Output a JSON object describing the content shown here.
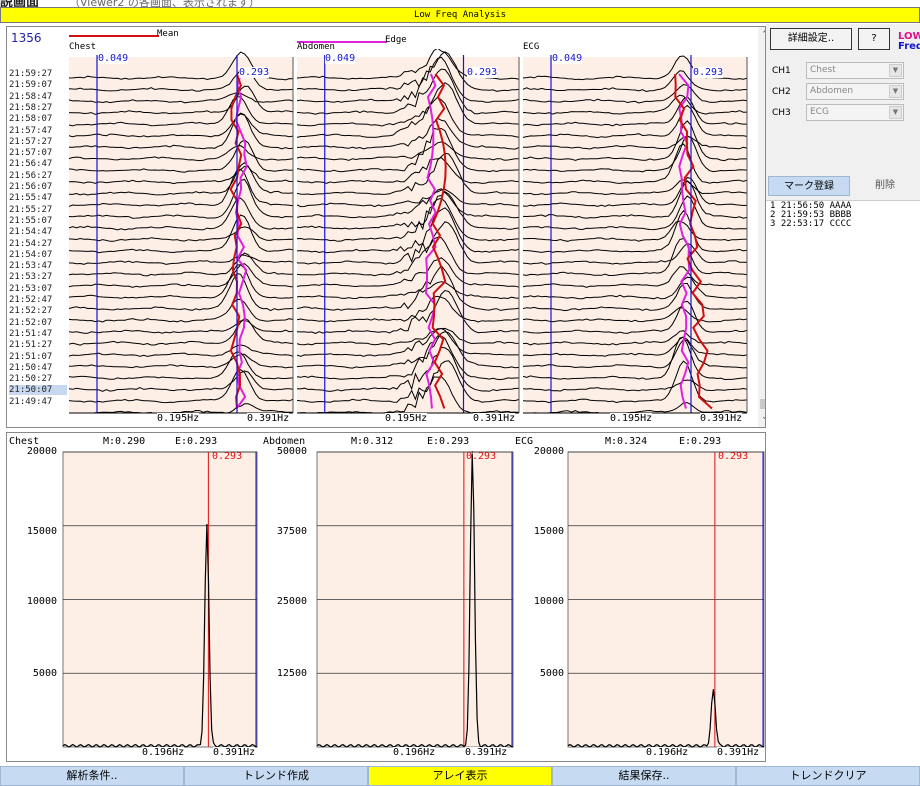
{
  "document": {
    "heading": "説画面",
    "note": "（Viewer2 の各画面、表示されます）"
  },
  "window": {
    "title": "Low Freq Analysis"
  },
  "waterfall": {
    "counter": "1356",
    "legend": [
      {
        "label": "Mean",
        "color": "#d01010"
      },
      {
        "label": "Edge",
        "color": "#e020e0"
      }
    ],
    "times": [
      "21:59:27",
      "21:59:07",
      "21:58:47",
      "21:58:27",
      "21:58:07",
      "21:57:47",
      "21:57:27",
      "21:57:07",
      "21:56:47",
      "21:56:27",
      "21:56:07",
      "21:55:47",
      "21:55:27",
      "21:55:07",
      "21:54:47",
      "21:54:27",
      "21:54:07",
      "21:53:47",
      "21:53:27",
      "21:53:07",
      "21:52:47",
      "21:52:27",
      "21:52:07",
      "21:51:47",
      "21:51:27",
      "21:51:07",
      "21:50:47",
      "21:50:27",
      "21:50:07",
      "21:49:47"
    ],
    "selected_time": "21:50:07",
    "panels": [
      {
        "title": "Chest",
        "low_marker": "0.049",
        "edge_marker": "0.293",
        "mid_tick": "0.195Hz",
        "end_tick": "0.391Hz"
      },
      {
        "title": "Abdomen",
        "low_marker": "0.049",
        "edge_marker": "0.293",
        "mid_tick": "0.195Hz",
        "end_tick": "0.391Hz"
      },
      {
        "title": "ECG",
        "low_marker": "0.049",
        "edge_marker": "0.293",
        "mid_tick": "0.195Hz",
        "end_tick": "0.391Hz"
      }
    ],
    "colors": {
      "background": "#fdeee6",
      "mean_line": "#d01010",
      "edge_line": "#e020e0",
      "marker_line": "#1515d0"
    }
  },
  "spectra": [
    {
      "title": "Chest",
      "mean": "M:0.290",
      "edge": "E:0.293",
      "edge_label": "0.293",
      "y_ticks": [
        "20000",
        "15000",
        "10000",
        "5000"
      ],
      "x_ticks": [
        "0.196Hz",
        "0.391Hz"
      ]
    },
    {
      "title": "Abdomen",
      "mean": "M:0.312",
      "edge": "E:0.293",
      "edge_label": "0.293",
      "y_ticks": [
        "50000",
        "37500",
        "25000",
        "12500"
      ],
      "x_ticks": [
        "0.196Hz",
        "0.391Hz"
      ]
    },
    {
      "title": "ECG",
      "mean": "M:0.324",
      "edge": "E:0.293",
      "edge_label": "0.293",
      "y_ticks": [
        "20000",
        "15000",
        "10000",
        "5000"
      ],
      "x_ticks": [
        "0.196Hz",
        "0.391Hz"
      ]
    }
  ],
  "chart_data": [
    {
      "type": "line",
      "title": "Chest",
      "x_unit": "Hz",
      "xlim": [
        0,
        0.391
      ],
      "ylim": [
        0,
        20000
      ],
      "y_ticks": [
        5000,
        10000,
        15000,
        20000
      ],
      "peak": {
        "x": 0.29,
        "y": 15000
      },
      "edge": 0.293,
      "mean": 0.29
    },
    {
      "type": "line",
      "title": "Abdomen",
      "x_unit": "Hz",
      "xlim": [
        0,
        0.391
      ],
      "ylim": [
        0,
        50000
      ],
      "y_ticks": [
        12500,
        25000,
        37500,
        50000
      ],
      "peak": {
        "x": 0.31,
        "y": 50000
      },
      "edge": 0.293,
      "mean": 0.312
    },
    {
      "type": "line",
      "title": "ECG",
      "x_unit": "Hz",
      "xlim": [
        0,
        0.391
      ],
      "ylim": [
        0,
        20000
      ],
      "y_ticks": [
        5000,
        10000,
        15000,
        20000
      ],
      "peak": {
        "x": 0.29,
        "y": 3800
      },
      "edge": 0.293,
      "mean": 0.324
    }
  ],
  "sidebar": {
    "settings_button": "詳細設定..",
    "help_button": "?",
    "logo": [
      "LOW",
      "Freq"
    ],
    "channels": [
      {
        "label": "CH1",
        "value": "Chest"
      },
      {
        "label": "CH2",
        "value": "Abdomen"
      },
      {
        "label": "CH3",
        "value": "ECG"
      }
    ],
    "tabs": {
      "register": "マーク登録",
      "delete": "削除"
    },
    "marks": [
      "1 21:56:50 AAAA",
      "2 21:59:53 BBBB",
      "3 22:53:17 CCCC"
    ]
  },
  "footer": {
    "buttons": [
      "解析条件..",
      "トレンド作成",
      "アレイ表示",
      "結果保存..",
      "トレンドクリア"
    ],
    "active": "アレイ表示",
    "colors": {
      "normal": "#c6dbf2",
      "active": "#ffff00"
    }
  }
}
